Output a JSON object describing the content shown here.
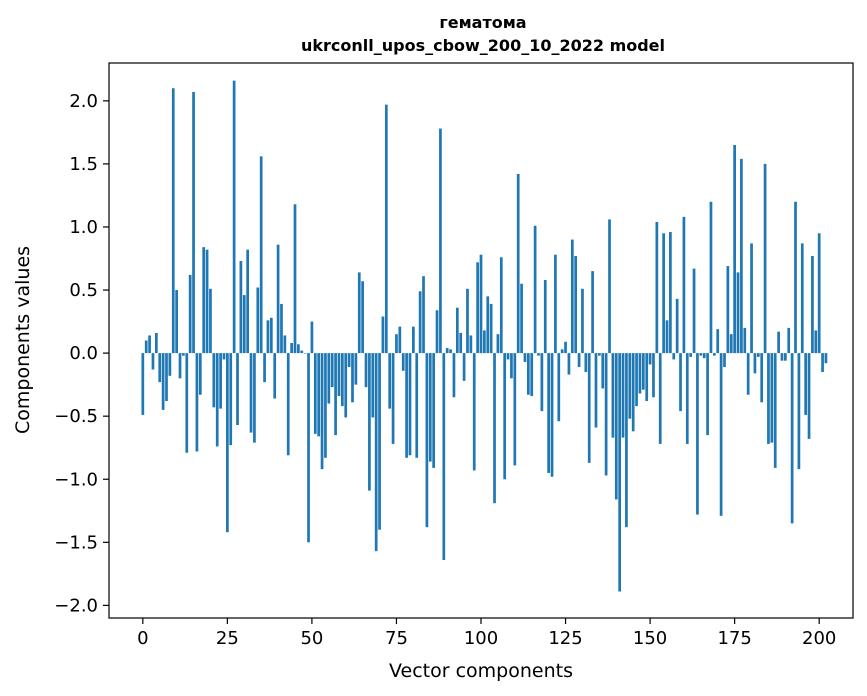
{
  "chart_data": {
    "type": "bar",
    "title": "гематома",
    "subtitle": "ukrconll_upos_cbow_200_10_2022 model",
    "xlabel": "Vector components",
    "ylabel": "Components values",
    "xlim": [
      -10,
      210
    ],
    "ylim": [
      -2.1,
      2.3
    ],
    "xticks": [
      0,
      25,
      50,
      75,
      100,
      125,
      150,
      175,
      200
    ],
    "yticks": [
      -2.0,
      -1.5,
      -1.0,
      -0.5,
      0.0,
      0.5,
      1.0,
      1.5,
      2.0
    ],
    "xtick_labels": [
      "0",
      "25",
      "50",
      "75",
      "100",
      "125",
      "150",
      "175",
      "200"
    ],
    "ytick_labels": [
      "−2.0",
      "−1.5",
      "−1.0",
      "−0.5",
      "0.0",
      "0.5",
      "1.0",
      "1.5",
      "2.0"
    ],
    "bar_color": "#1f77b4",
    "grid": false,
    "values": [
      -0.49,
      0.1,
      0.14,
      -0.13,
      0.16,
      -0.23,
      -0.45,
      -0.38,
      -0.18,
      2.1,
      0.5,
      -0.2,
      -0.02,
      -0.79,
      0.62,
      2.07,
      -0.78,
      -0.33,
      0.84,
      0.82,
      0.51,
      -0.43,
      -0.74,
      -0.44,
      -0.05,
      -1.42,
      -0.73,
      2.16,
      -0.57,
      0.73,
      0.46,
      0.82,
      -0.63,
      -0.71,
      0.52,
      1.56,
      -0.23,
      0.26,
      0.28,
      -0.36,
      0.86,
      0.39,
      0.14,
      -0.81,
      0.08,
      1.18,
      0.07,
      0.02,
      0.0,
      -1.5,
      0.25,
      -0.64,
      -0.66,
      -0.92,
      -0.83,
      -0.4,
      -0.27,
      -0.65,
      -0.34,
      -0.42,
      -0.51,
      -0.11,
      -0.39,
      -0.25,
      0.64,
      0.57,
      -0.27,
      -1.09,
      -0.51,
      -1.57,
      -1.4,
      0.29,
      1.97,
      -0.44,
      -0.72,
      0.15,
      0.21,
      -0.14,
      -0.83,
      -0.81,
      0.21,
      -0.83,
      0.49,
      0.61,
      -1.38,
      -0.86,
      -0.91,
      0.34,
      1.78,
      -1.64,
      0.04,
      0.03,
      -0.35,
      0.36,
      0.16,
      -0.22,
      0.51,
      0.14,
      -0.93,
      0.72,
      0.78,
      0.18,
      0.45,
      0.39,
      -1.19,
      0.15,
      0.76,
      -1.0,
      -0.05,
      -0.2,
      -0.89,
      1.42,
      0.55,
      -0.07,
      -0.33,
      -0.34,
      1.01,
      -0.02,
      -0.46,
      0.58,
      -0.95,
      -0.98,
      0.78,
      -0.54,
      0.03,
      0.09,
      -0.17,
      0.9,
      0.77,
      -0.11,
      0.51,
      -0.15,
      -0.87,
      0.65,
      -0.59,
      -0.02,
      -0.28,
      -0.97,
      1.06,
      -0.67,
      -1.16,
      -1.89,
      -0.67,
      -1.38,
      -0.52,
      -0.62,
      -0.42,
      -0.32,
      -0.29,
      -0.38,
      -0.09,
      -0.35,
      1.04,
      -0.72,
      0.95,
      0.26,
      0.96,
      -0.05,
      0.43,
      -0.46,
      1.08,
      -0.72,
      -0.03,
      0.67,
      -1.28,
      -0.02,
      -0.04,
      -0.65,
      1.2,
      -0.02,
      0.19,
      -1.29,
      -0.11,
      0.69,
      0.15,
      1.65,
      0.64,
      1.54,
      0.2,
      -0.33,
      0.87,
      -0.16,
      -0.03,
      -0.39,
      1.5,
      -0.72,
      -0.71,
      -0.91,
      0.17,
      -0.06,
      -0.06,
      0.2,
      -1.35,
      1.2,
      -0.92,
      0.87,
      -0.49,
      -0.68,
      0.77,
      0.18,
      0.95,
      -0.15,
      -0.08
    ]
  }
}
